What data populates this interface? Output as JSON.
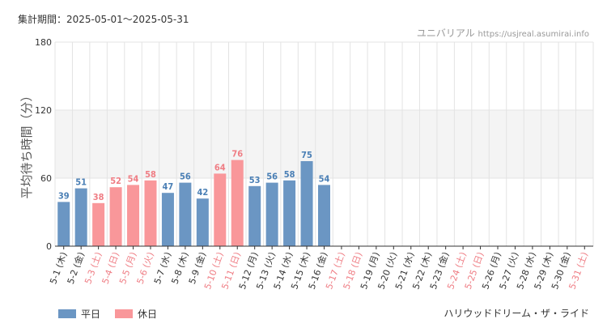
{
  "period_label": "集計期間：2025-05-01～2025-05-31",
  "site_name": "ユニバリアル",
  "site_url": "https://usjreal.asumirai.info",
  "attraction_name": "ハリウッドドリーム・ザ・ライド",
  "colors": {
    "weekday": "#6b96c3",
    "holiday": "#f9979a",
    "weekday_text": "#4a7fb5",
    "holiday_text": "#ef7d84",
    "grid": "#e3e3e3",
    "band": "#f4f4f4",
    "axis": "#333333"
  },
  "chart_data": {
    "type": "bar",
    "ylabel": "平均待ち時間（分）",
    "ylim": [
      0,
      180
    ],
    "yticks": [
      0,
      60,
      120,
      180
    ],
    "grid": true,
    "legend_position": "bottom-left",
    "series": [
      {
        "name": "平日",
        "color": "#6b96c3"
      },
      {
        "name": "休日",
        "color": "#f9979a"
      }
    ],
    "categories": [
      "5-1 (木)",
      "5-2 (金)",
      "5-3 (土)",
      "5-4 (日)",
      "5-5 (月)",
      "5-6 (火)",
      "5-7 (水)",
      "5-8 (木)",
      "5-9 (金)",
      "5-10 (土)",
      "5-11 (日)",
      "5-12 (月)",
      "5-13 (火)",
      "5-14 (水)",
      "5-15 (木)",
      "5-16 (金)",
      "5-17 (土)",
      "5-18 (日)",
      "5-19 (月)",
      "5-20 (火)",
      "5-21 (水)",
      "5-22 (木)",
      "5-23 (金)",
      "5-24 (土)",
      "5-25 (日)",
      "5-26 (月)",
      "5-27 (火)",
      "5-28 (水)",
      "5-29 (木)",
      "5-30 (金)",
      "5-31 (土)"
    ],
    "values": [
      39,
      51,
      38,
      52,
      54,
      58,
      47,
      56,
      42,
      64,
      76,
      53,
      56,
      58,
      75,
      54,
      null,
      null,
      null,
      null,
      null,
      null,
      null,
      null,
      null,
      null,
      null,
      null,
      null,
      null,
      null
    ],
    "holiday": [
      false,
      false,
      true,
      true,
      true,
      true,
      false,
      false,
      false,
      true,
      true,
      false,
      false,
      false,
      false,
      false,
      true,
      true,
      false,
      false,
      false,
      false,
      false,
      true,
      true,
      false,
      false,
      false,
      false,
      false,
      true
    ]
  }
}
